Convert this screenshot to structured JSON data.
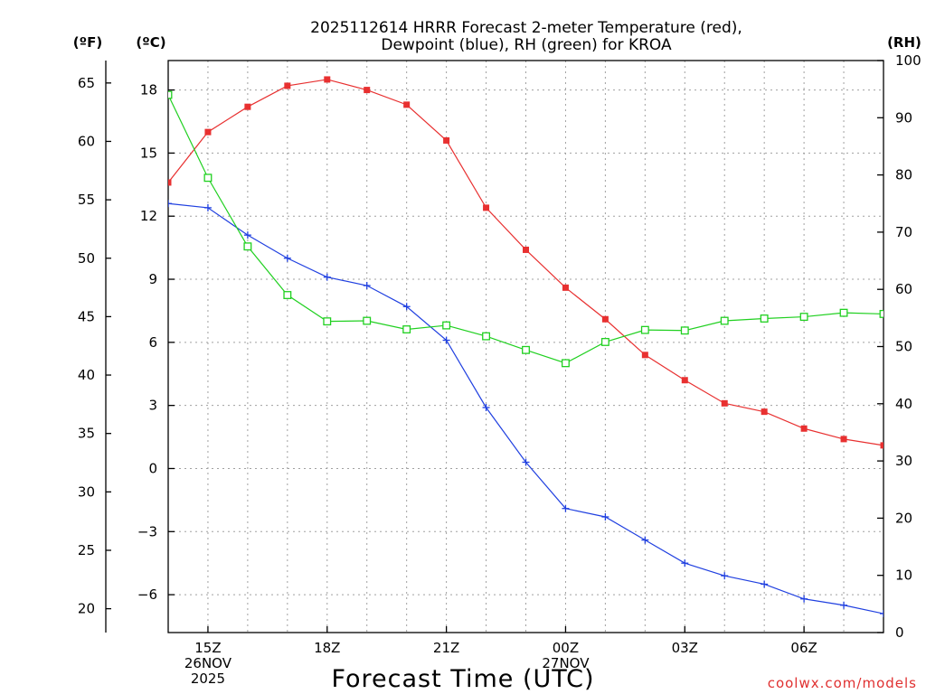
{
  "chart_data": {
    "type": "line",
    "title": [
      "2025112614 HRRR Forecast 2-meter Temperature (red),",
      "Dewpoint (blue), RH (green) for KROA"
    ],
    "xlabel": "Forecast Time (UTC)",
    "credit": "coolwx.com/models",
    "x_hours": [
      14,
      15,
      16,
      17,
      18,
      19,
      20,
      21,
      22,
      23,
      24,
      25,
      26,
      27,
      28,
      29,
      30,
      31,
      32
    ],
    "x_range": [
      14,
      32
    ],
    "x_ticks": [
      {
        "hour": 15,
        "lines": [
          "15Z",
          "26NOV",
          "2025"
        ]
      },
      {
        "hour": 18,
        "lines": [
          "18Z"
        ]
      },
      {
        "hour": 21,
        "lines": [
          "21Z"
        ]
      },
      {
        "hour": 24,
        "lines": [
          "00Z",
          "27NOV"
        ]
      },
      {
        "hour": 27,
        "lines": [
          "03Z"
        ]
      },
      {
        "hour": 30,
        "lines": [
          "06Z"
        ]
      }
    ],
    "axes": {
      "celsius": {
        "unit": "(ºC)",
        "range": [
          -7.8,
          19.4
        ],
        "ticks": [
          18,
          15,
          12,
          9,
          6,
          3,
          0,
          -3,
          -6
        ],
        "tick_labels": [
          "18",
          "15",
          "12",
          "9",
          "6",
          "3",
          "0",
          "−3",
          "−6"
        ]
      },
      "fahrenheit": {
        "unit": "(ºF)",
        "range": [
          17.96,
          66.92
        ],
        "ticks": [
          65,
          60,
          55,
          50,
          45,
          40,
          35,
          30,
          25,
          20
        ],
        "tick_labels": [
          "65",
          "60",
          "55",
          "50",
          "45",
          "40",
          "35",
          "30",
          "25",
          "20"
        ]
      },
      "rh": {
        "unit": "(RH)",
        "range": [
          0,
          100
        ],
        "ticks": [
          100,
          90,
          80,
          70,
          60,
          50,
          40,
          30,
          20,
          10,
          0
        ],
        "tick_labels": [
          "100",
          "90",
          "80",
          "70",
          "60",
          "50",
          "40",
          "30",
          "20",
          "10",
          "0"
        ]
      }
    },
    "series": [
      {
        "name": "2-meter Temperature",
        "axis": "celsius",
        "color": "#e83030",
        "marker": "filled-square",
        "values": [
          13.6,
          16.0,
          17.2,
          18.2,
          18.5,
          18.0,
          17.3,
          15.6,
          12.4,
          10.4,
          8.6,
          7.1,
          5.4,
          4.2,
          3.1,
          2.7,
          1.9,
          1.4,
          1.1
        ]
      },
      {
        "name": "Dewpoint",
        "axis": "celsius",
        "color": "#2040e0",
        "marker": "plus",
        "values": [
          12.6,
          12.4,
          11.1,
          10.0,
          9.1,
          8.7,
          7.7,
          6.1,
          2.9,
          0.3,
          -1.9,
          -2.3,
          -3.4,
          -4.5,
          -5.1,
          -5.5,
          -6.2,
          -6.5,
          -6.9
        ]
      },
      {
        "name": "RH",
        "axis": "rh",
        "color": "#20d020",
        "marker": "open-square",
        "values": [
          94,
          79.5,
          67.5,
          59,
          54.4,
          54.5,
          53,
          53.7,
          51.8,
          49.4,
          47.1,
          50.8,
          52.9,
          52.8,
          54.5,
          54.9,
          55.2,
          55.9,
          55.7
        ]
      }
    ]
  }
}
